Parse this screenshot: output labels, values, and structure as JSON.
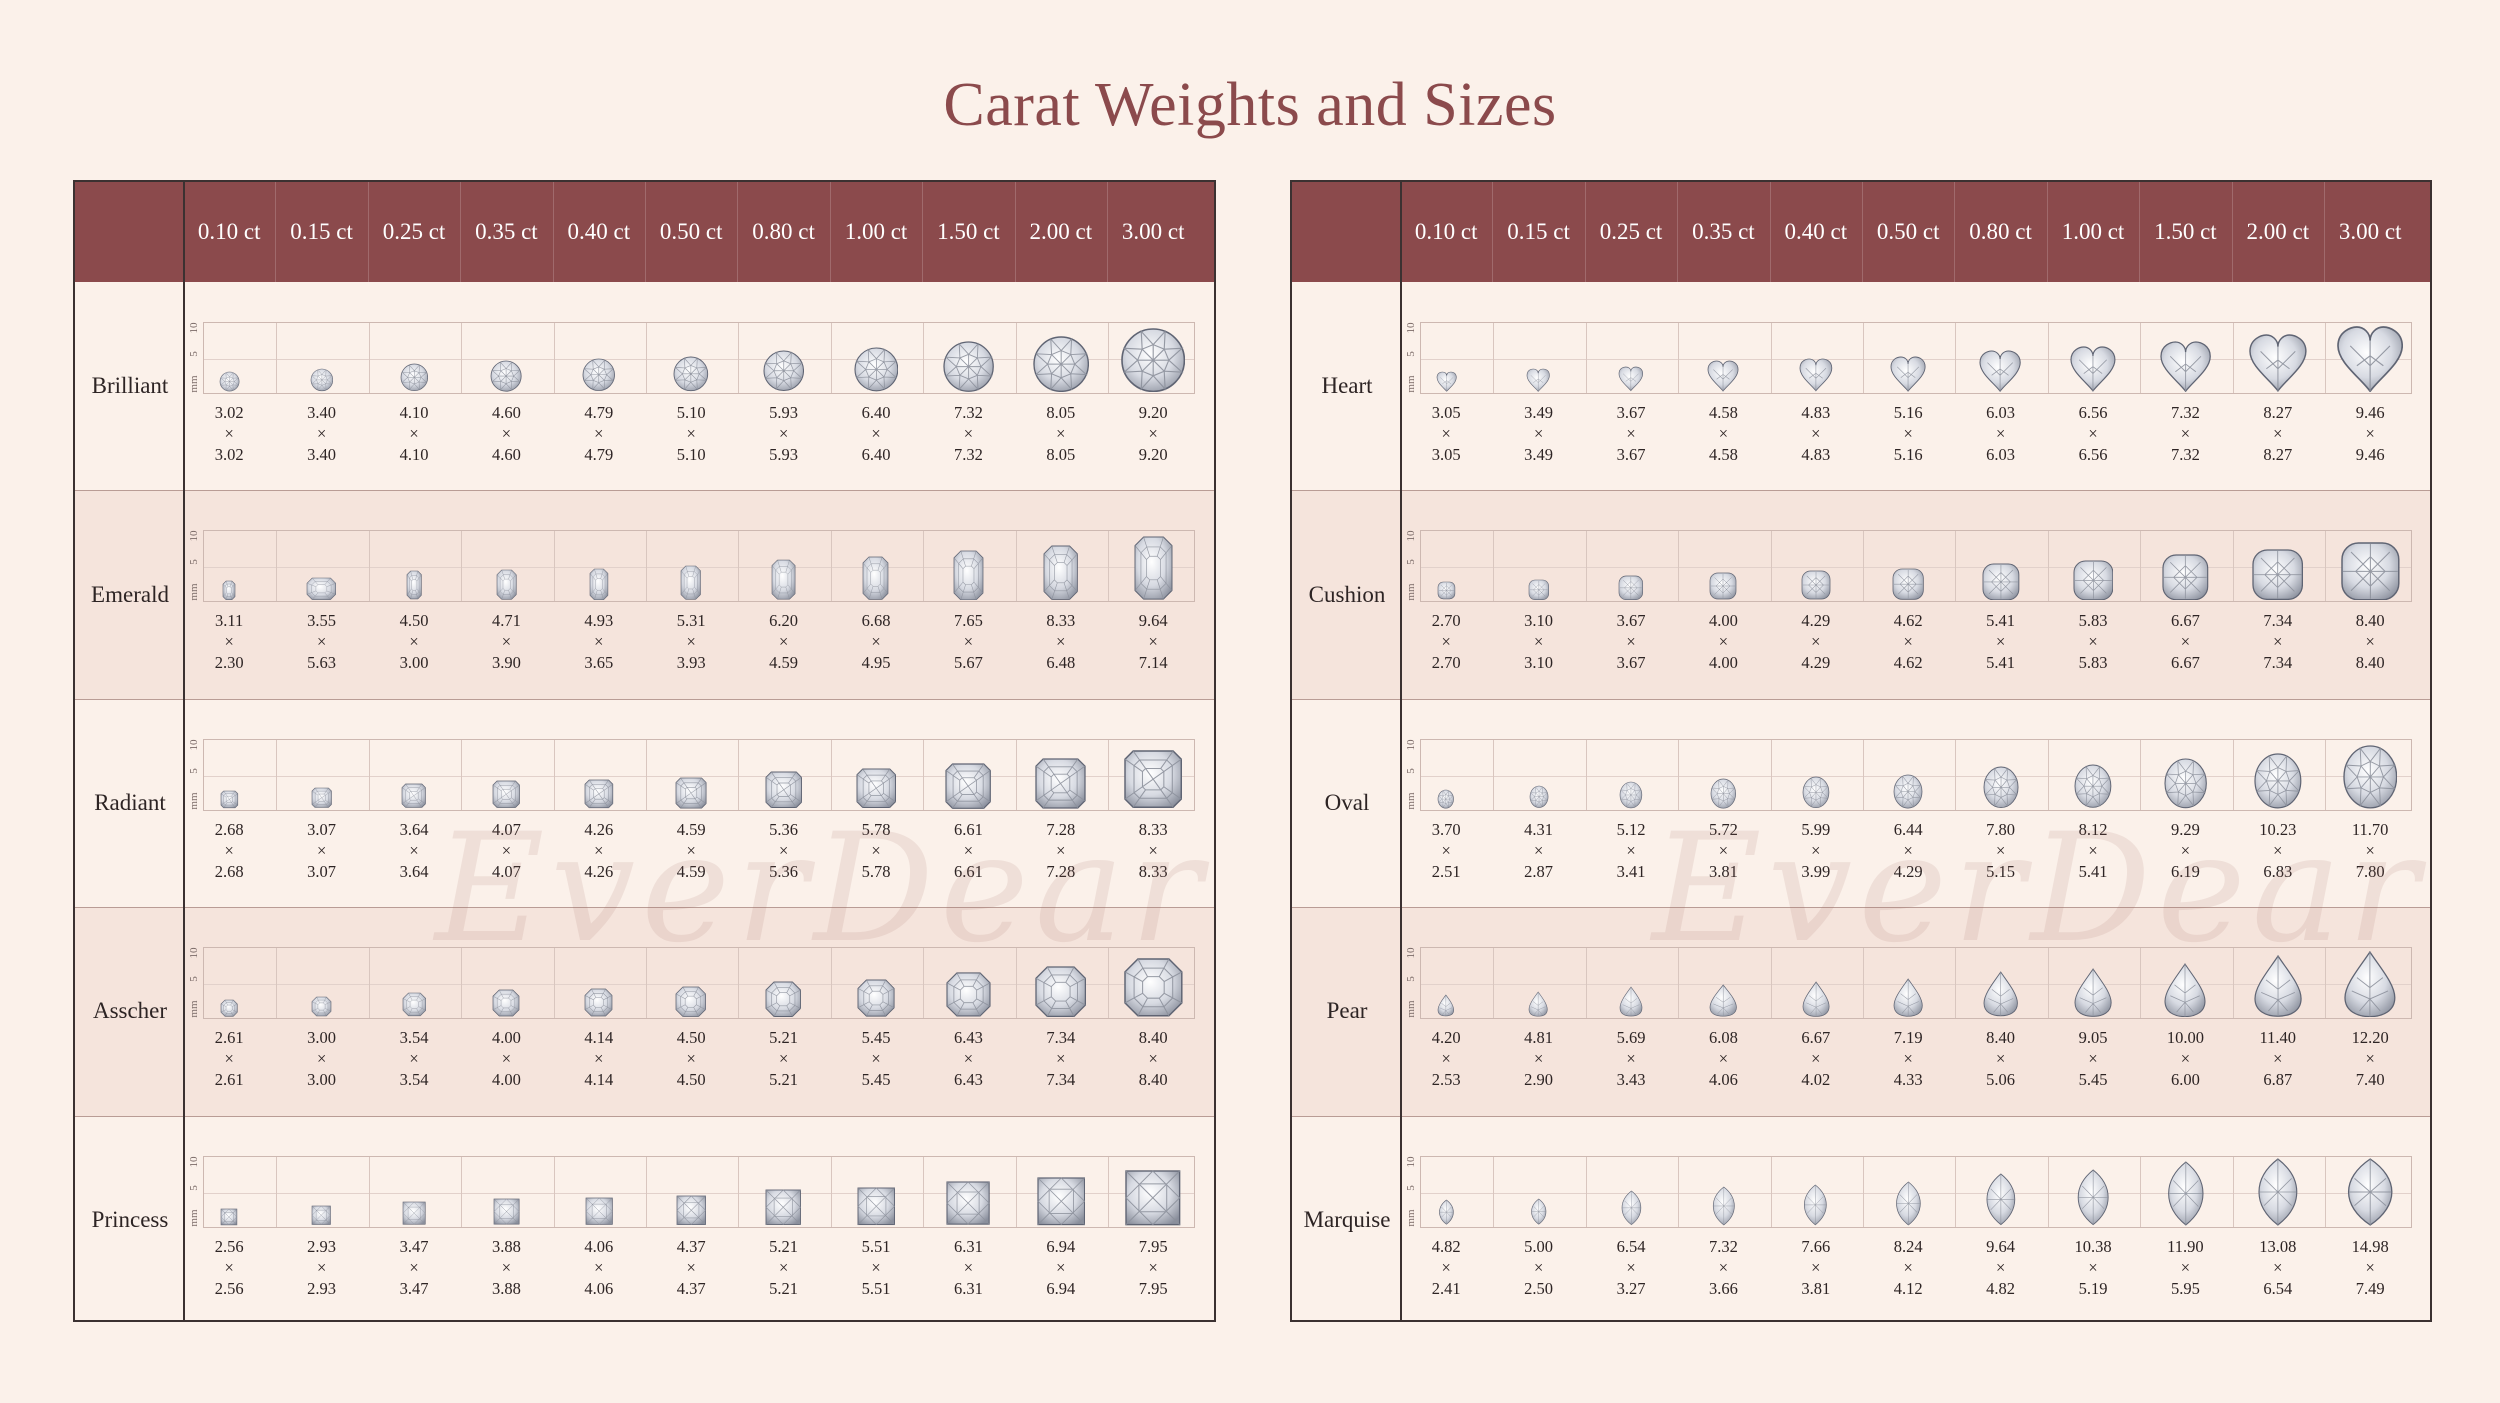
{
  "title": "Carat Weights and Sizes",
  "watermark": "EverDear",
  "carats": [
    "0.10 ct",
    "0.15 ct",
    "0.25 ct",
    "0.35 ct",
    "0.40 ct",
    "0.50 ct",
    "0.80 ct",
    "1.00 ct",
    "1.50 ct",
    "2.00 ct",
    "3.00 ct"
  ],
  "axis": {
    "unit": "mm",
    "tick_low": "5",
    "tick_high": "10"
  },
  "times": "×",
  "colors": {
    "header_bg": "#8b4a4c",
    "page_bg": "#fbf1ea",
    "row_alt": "#f5e4dc",
    "title": "#8b4a4c"
  },
  "left_shapes": [
    {
      "name": "Brilliant",
      "icon": "round-diamond-icon",
      "sizes": [
        [
          "3.02",
          "3.02"
        ],
        [
          "3.40",
          "3.40"
        ],
        [
          "4.10",
          "4.10"
        ],
        [
          "4.60",
          "4.60"
        ],
        [
          "4.79",
          "4.79"
        ],
        [
          "5.10",
          "5.10"
        ],
        [
          "5.93",
          "5.93"
        ],
        [
          "6.40",
          "6.40"
        ],
        [
          "7.32",
          "7.32"
        ],
        [
          "8.05",
          "8.05"
        ],
        [
          "9.20",
          "9.20"
        ]
      ]
    },
    {
      "name": "Emerald",
      "icon": "emerald-diamond-icon",
      "sizes": [
        [
          "3.11",
          "2.30"
        ],
        [
          "3.55",
          "5.63"
        ],
        [
          "4.50",
          "3.00"
        ],
        [
          "4.71",
          "3.90"
        ],
        [
          "4.93",
          "3.65"
        ],
        [
          "5.31",
          "3.93"
        ],
        [
          "6.20",
          "4.59"
        ],
        [
          "6.68",
          "4.95"
        ],
        [
          "7.65",
          "5.67"
        ],
        [
          "8.33",
          "6.48"
        ],
        [
          "9.64",
          "7.14"
        ]
      ]
    },
    {
      "name": "Radiant",
      "icon": "radiant-diamond-icon",
      "sizes": [
        [
          "2.68",
          "2.68"
        ],
        [
          "3.07",
          "3.07"
        ],
        [
          "3.64",
          "3.64"
        ],
        [
          "4.07",
          "4.07"
        ],
        [
          "4.26",
          "4.26"
        ],
        [
          "4.59",
          "4.59"
        ],
        [
          "5.36",
          "5.36"
        ],
        [
          "5.78",
          "5.78"
        ],
        [
          "6.61",
          "6.61"
        ],
        [
          "7.28",
          "7.28"
        ],
        [
          "8.33",
          "8.33"
        ]
      ]
    },
    {
      "name": "Asscher",
      "icon": "asscher-diamond-icon",
      "sizes": [
        [
          "2.61",
          "2.61"
        ],
        [
          "3.00",
          "3.00"
        ],
        [
          "3.54",
          "3.54"
        ],
        [
          "4.00",
          "4.00"
        ],
        [
          "4.14",
          "4.14"
        ],
        [
          "4.50",
          "4.50"
        ],
        [
          "5.21",
          "5.21"
        ],
        [
          "5.45",
          "5.45"
        ],
        [
          "6.43",
          "6.43"
        ],
        [
          "7.34",
          "7.34"
        ],
        [
          "8.40",
          "8.40"
        ]
      ]
    },
    {
      "name": "Princess",
      "icon": "princess-diamond-icon",
      "sizes": [
        [
          "2.56",
          "2.56"
        ],
        [
          "2.93",
          "2.93"
        ],
        [
          "3.47",
          "3.47"
        ],
        [
          "3.88",
          "3.88"
        ],
        [
          "4.06",
          "4.06"
        ],
        [
          "4.37",
          "4.37"
        ],
        [
          "5.21",
          "5.21"
        ],
        [
          "5.51",
          "5.51"
        ],
        [
          "6.31",
          "6.31"
        ],
        [
          "6.94",
          "6.94"
        ],
        [
          "7.95",
          "7.95"
        ]
      ]
    }
  ],
  "right_shapes": [
    {
      "name": "Heart",
      "icon": "heart-diamond-icon",
      "sizes": [
        [
          "3.05",
          "3.05"
        ],
        [
          "3.49",
          "3.49"
        ],
        [
          "3.67",
          "3.67"
        ],
        [
          "4.58",
          "4.58"
        ],
        [
          "4.83",
          "4.83"
        ],
        [
          "5.16",
          "5.16"
        ],
        [
          "6.03",
          "6.03"
        ],
        [
          "6.56",
          "6.56"
        ],
        [
          "7.32",
          "7.32"
        ],
        [
          "8.27",
          "8.27"
        ],
        [
          "9.46",
          "9.46"
        ]
      ]
    },
    {
      "name": "Cushion",
      "icon": "cushion-diamond-icon",
      "sizes": [
        [
          "2.70",
          "2.70"
        ],
        [
          "3.10",
          "3.10"
        ],
        [
          "3.67",
          "3.67"
        ],
        [
          "4.00",
          "4.00"
        ],
        [
          "4.29",
          "4.29"
        ],
        [
          "4.62",
          "4.62"
        ],
        [
          "5.41",
          "5.41"
        ],
        [
          "5.83",
          "5.83"
        ],
        [
          "6.67",
          "6.67"
        ],
        [
          "7.34",
          "7.34"
        ],
        [
          "8.40",
          "8.40"
        ]
      ]
    },
    {
      "name": "Oval",
      "icon": "oval-diamond-icon",
      "sizes": [
        [
          "3.70",
          "2.51"
        ],
        [
          "4.31",
          "2.87"
        ],
        [
          "5.12",
          "3.41"
        ],
        [
          "5.72",
          "3.81"
        ],
        [
          "5.99",
          "3.99"
        ],
        [
          "6.44",
          "4.29"
        ],
        [
          "7.80",
          "5.15"
        ],
        [
          "8.12",
          "5.41"
        ],
        [
          "9.29",
          "6.19"
        ],
        [
          "10.23",
          "6.83"
        ],
        [
          "11.70",
          "7.80"
        ]
      ]
    },
    {
      "name": "Pear",
      "icon": "pear-diamond-icon",
      "sizes": [
        [
          "4.20",
          "2.53"
        ],
        [
          "4.81",
          "2.90"
        ],
        [
          "5.69",
          "3.43"
        ],
        [
          "6.08",
          "4.06"
        ],
        [
          "6.67",
          "4.02"
        ],
        [
          "7.19",
          "4.33"
        ],
        [
          "8.40",
          "5.06"
        ],
        [
          "9.05",
          "5.45"
        ],
        [
          "10.00",
          "6.00"
        ],
        [
          "11.40",
          "6.87"
        ],
        [
          "12.20",
          "7.40"
        ]
      ]
    },
    {
      "name": "Marquise",
      "icon": "marquise-diamond-icon",
      "sizes": [
        [
          "4.82",
          "2.41"
        ],
        [
          "5.00",
          "2.50"
        ],
        [
          "6.54",
          "3.27"
        ],
        [
          "7.32",
          "3.66"
        ],
        [
          "7.66",
          "3.81"
        ],
        [
          "8.24",
          "4.12"
        ],
        [
          "9.64",
          "4.82"
        ],
        [
          "10.38",
          "5.19"
        ],
        [
          "11.90",
          "5.95"
        ],
        [
          "13.08",
          "6.54"
        ],
        [
          "14.98",
          "7.49"
        ]
      ]
    }
  ]
}
